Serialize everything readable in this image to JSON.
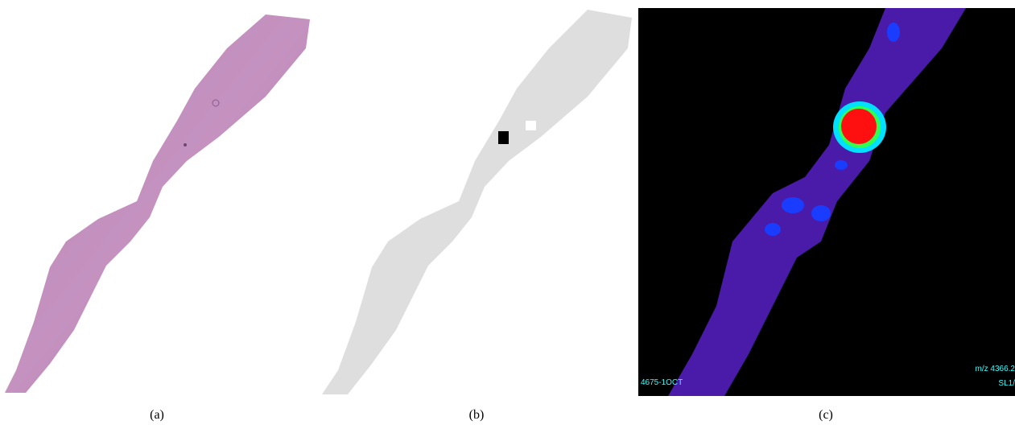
{
  "panels": [
    {
      "label": "(a)"
    },
    {
      "label": "(b)"
    },
    {
      "label": "(c)",
      "overlay": {
        "sample": "4675-1OCT",
        "mz": "m/z 4366.2",
        "slide": "SL1/"
      }
    }
  ]
}
